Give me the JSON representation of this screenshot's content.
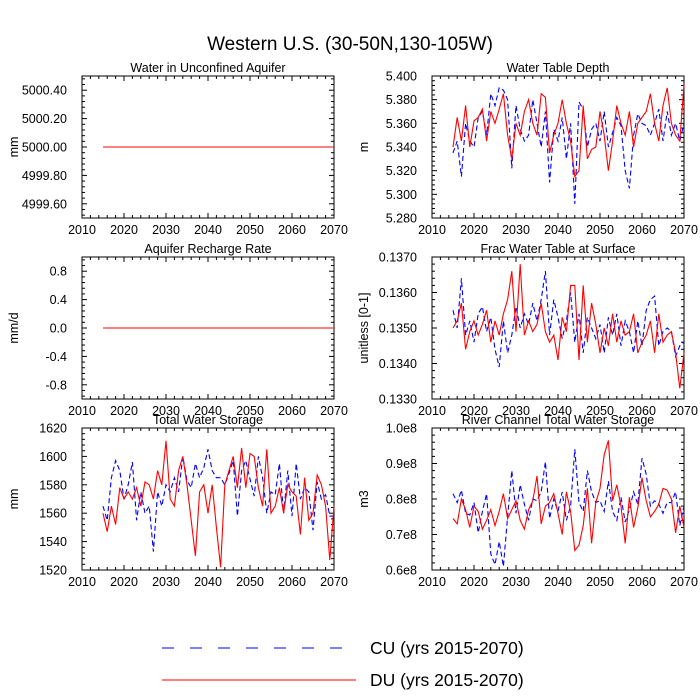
{
  "figure": {
    "title": "Western U.S. (30-50N,130-105W)",
    "legend": [
      {
        "name": "CU (yrs 2015-2070)",
        "color": "#0000ff",
        "dash": true
      },
      {
        "name": "DU (yrs 2015-2070)",
        "color": "#ff0000",
        "dash": false
      }
    ]
  },
  "chart_data": [
    {
      "type": "line",
      "title": "Water in Unconfined Aquifer",
      "ylabel": "mm",
      "xlim": [
        2010,
        2070
      ],
      "ylim": [
        4999.5,
        5000.5
      ],
      "xticks": [
        "2010",
        "2020",
        "2030",
        "2040",
        "2050",
        "2060",
        "2070"
      ],
      "yticks": [
        {
          "v": 4999.6,
          "t": "4999.60"
        },
        {
          "v": 4999.8,
          "t": "4999.80"
        },
        {
          "v": 5000.0,
          "t": "5000.00"
        },
        {
          "v": 5000.2,
          "t": "5000.20"
        },
        {
          "v": 5000.4,
          "t": "5000.40"
        }
      ],
      "x_start": 2015,
      "series": [
        {
          "name": "CU (yrs 2015-2070)",
          "color": "#0000ff",
          "values": [
            5000,
            5000,
            5000,
            5000,
            5000,
            5000,
            5000,
            5000,
            5000,
            5000,
            5000,
            5000,
            5000,
            5000,
            5000,
            5000,
            5000,
            5000,
            5000,
            5000,
            5000,
            5000,
            5000,
            5000,
            5000,
            5000,
            5000,
            5000,
            5000,
            5000,
            5000,
            5000,
            5000,
            5000,
            5000,
            5000,
            5000,
            5000,
            5000,
            5000,
            5000,
            5000,
            5000,
            5000,
            5000,
            5000,
            5000,
            5000,
            5000,
            5000,
            5000,
            5000,
            5000,
            5000,
            5000,
            5000
          ]
        },
        {
          "name": "DU (yrs 2015-2070)",
          "color": "#ff0000",
          "values": [
            5000,
            5000,
            5000,
            5000,
            5000,
            5000,
            5000,
            5000,
            5000,
            5000,
            5000,
            5000,
            5000,
            5000,
            5000,
            5000,
            5000,
            5000,
            5000,
            5000,
            5000,
            5000,
            5000,
            5000,
            5000,
            5000,
            5000,
            5000,
            5000,
            5000,
            5000,
            5000,
            5000,
            5000,
            5000,
            5000,
            5000,
            5000,
            5000,
            5000,
            5000,
            5000,
            5000,
            5000,
            5000,
            5000,
            5000,
            5000,
            5000,
            5000,
            5000,
            5000,
            5000,
            5000,
            5000,
            5000
          ]
        }
      ]
    },
    {
      "type": "line",
      "title": "Water Table Depth",
      "ylabel": "m",
      "xlim": [
        2010,
        2070
      ],
      "ylim": [
        5.28,
        5.4
      ],
      "xticks": [
        "2010",
        "2020",
        "2030",
        "2040",
        "2050",
        "2060",
        "2070"
      ],
      "yticks": [
        {
          "v": 5.28,
          "t": "5.280"
        },
        {
          "v": 5.3,
          "t": "5.300"
        },
        {
          "v": 5.32,
          "t": "5.320"
        },
        {
          "v": 5.34,
          "t": "5.340"
        },
        {
          "v": 5.36,
          "t": "5.360"
        },
        {
          "v": 5.38,
          "t": "5.380"
        },
        {
          "v": 5.4,
          "t": "5.400"
        }
      ],
      "x_start": 2015,
      "series": [
        {
          "name": "CU (yrs 2015-2070)",
          "color": "#0000ff",
          "values": [
            5.335,
            5.345,
            5.315,
            5.36,
            5.345,
            5.34,
            5.365,
            5.37,
            5.35,
            5.385,
            5.375,
            5.39,
            5.388,
            5.38,
            5.322,
            5.375,
            5.355,
            5.345,
            5.35,
            5.38,
            5.36,
            5.34,
            5.37,
            5.31,
            5.355,
            5.345,
            5.365,
            5.33,
            5.36,
            5.292,
            5.378,
            5.372,
            5.34,
            5.355,
            5.36,
            5.345,
            5.37,
            5.34,
            5.352,
            5.365,
            5.358,
            5.32,
            5.305,
            5.35,
            5.368,
            5.36,
            5.358,
            5.35,
            5.36,
            5.372,
            5.345,
            5.37,
            5.35,
            5.36,
            5.345,
            5.36
          ]
        },
        {
          "name": "DU (yrs 2015-2070)",
          "color": "#ff0000",
          "values": [
            5.34,
            5.365,
            5.345,
            5.375,
            5.34,
            5.362,
            5.365,
            5.372,
            5.345,
            5.37,
            5.36,
            5.372,
            5.385,
            5.35,
            5.33,
            5.36,
            5.35,
            5.37,
            5.38,
            5.36,
            5.35,
            5.385,
            5.382,
            5.335,
            5.35,
            5.36,
            5.38,
            5.36,
            5.345,
            5.315,
            5.32,
            5.375,
            5.33,
            5.338,
            5.34,
            5.37,
            5.35,
            5.32,
            5.345,
            5.375,
            5.36,
            5.35,
            5.37,
            5.34,
            5.36,
            5.365,
            5.37,
            5.385,
            5.36,
            5.345,
            5.375,
            5.39,
            5.36,
            5.35,
            5.345,
            5.393
          ]
        }
      ]
    },
    {
      "type": "line",
      "title": "Aquifer Recharge Rate",
      "ylabel": "mm/d",
      "xlim": [
        2010,
        2070
      ],
      "ylim": [
        -1.0,
        1.0
      ],
      "xticks": [
        "2010",
        "2020",
        "2030",
        "2040",
        "2050",
        "2060",
        "2070"
      ],
      "yticks": [
        {
          "v": -0.8,
          "t": "-0.8"
        },
        {
          "v": -0.4,
          "t": "-0.4"
        },
        {
          "v": 0.0,
          "t": "0.0"
        },
        {
          "v": 0.4,
          "t": "0.4"
        },
        {
          "v": 0.8,
          "t": "0.8"
        }
      ],
      "x_start": 2015,
      "series": [
        {
          "name": "CU (yrs 2015-2070)",
          "color": "#0000ff",
          "values": [
            0,
            0,
            0,
            0,
            0,
            0,
            0,
            0,
            0,
            0,
            0,
            0,
            0,
            0,
            0,
            0,
            0,
            0,
            0,
            0,
            0,
            0,
            0,
            0,
            0,
            0,
            0,
            0,
            0,
            0,
            0,
            0,
            0,
            0,
            0,
            0,
            0,
            0,
            0,
            0,
            0,
            0,
            0,
            0,
            0,
            0,
            0,
            0,
            0,
            0,
            0,
            0,
            0,
            0,
            0,
            0
          ]
        },
        {
          "name": "DU (yrs 2015-2070)",
          "color": "#ff0000",
          "values": [
            0,
            0,
            0,
            0,
            0,
            0,
            0,
            0,
            0,
            0,
            0,
            0,
            0,
            0,
            0,
            0,
            0,
            0,
            0,
            0,
            0,
            0,
            0,
            0,
            0,
            0,
            0,
            0,
            0,
            0,
            0,
            0,
            0,
            0,
            0,
            0,
            0,
            0,
            0,
            0,
            0,
            0,
            0,
            0,
            0,
            0,
            0,
            0,
            0,
            0,
            0,
            0,
            0,
            0,
            0,
            0
          ]
        }
      ]
    },
    {
      "type": "line",
      "title": "Frac Water Table at Surface",
      "ylabel": "unitless [0-1]",
      "xlim": [
        2010,
        2070
      ],
      "ylim": [
        0.133,
        0.137
      ],
      "xticks": [
        "2010",
        "2020",
        "2030",
        "2040",
        "2050",
        "2060",
        "2070"
      ],
      "yticks": [
        {
          "v": 0.133,
          "t": "0.1330"
        },
        {
          "v": 0.134,
          "t": "0.1340"
        },
        {
          "v": 0.135,
          "t": "0.1350"
        },
        {
          "v": 0.136,
          "t": "0.1360"
        },
        {
          "v": 0.137,
          "t": "0.1370"
        }
      ],
      "x_start": 2015,
      "series": [
        {
          "name": "CU (yrs 2015-2070)",
          "color": "#0000ff",
          "values": [
            0.1355,
            0.135,
            0.1364,
            0.1348,
            0.1352,
            0.1346,
            0.1354,
            0.1356,
            0.1349,
            0.1353,
            0.1344,
            0.1339,
            0.1352,
            0.1343,
            0.1348,
            0.1356,
            0.135,
            0.1354,
            0.1351,
            0.1357,
            0.1352,
            0.1358,
            0.1366,
            0.1348,
            0.1358,
            0.1353,
            0.1347,
            0.1352,
            0.136,
            0.1346,
            0.1354,
            0.1343,
            0.1353,
            0.135,
            0.1347,
            0.1351,
            0.1343,
            0.1353,
            0.1348,
            0.1354,
            0.1345,
            0.1352,
            0.1349,
            0.1343,
            0.1352,
            0.1345,
            0.1355,
            0.1358,
            0.1359,
            0.1345,
            0.1349,
            0.135,
            0.1349,
            0.1342,
            0.1345,
            0.1346
          ]
        },
        {
          "name": "DU (yrs 2015-2070)",
          "color": "#ff0000",
          "values": [
            0.135,
            0.1352,
            0.1357,
            0.1344,
            0.1349,
            0.1352,
            0.1348,
            0.1351,
            0.1355,
            0.1346,
            0.1352,
            0.1348,
            0.1354,
            0.1358,
            0.1366,
            0.1349,
            0.1368,
            0.1348,
            0.1352,
            0.1349,
            0.1351,
            0.1357,
            0.1349,
            0.1346,
            0.1348,
            0.1341,
            0.1353,
            0.1349,
            0.1362,
            0.1362,
            0.1341,
            0.1362,
            0.1346,
            0.1357,
            0.1351,
            0.1343,
            0.135,
            0.1345,
            0.1354,
            0.1346,
            0.1352,
            0.1348,
            0.1349,
            0.1354,
            0.1343,
            0.1346,
            0.1348,
            0.1352,
            0.1343,
            0.1354,
            0.1346,
            0.1348,
            0.1349,
            0.1343,
            0.1333,
            0.1343
          ]
        }
      ]
    },
    {
      "type": "line",
      "title": "Total Water Storage",
      "ylabel": "mm",
      "xlim": [
        2010,
        2070
      ],
      "ylim": [
        1520,
        1620
      ],
      "xticks": [
        "2010",
        "2020",
        "2030",
        "2040",
        "2050",
        "2060",
        "2070"
      ],
      "yticks": [
        {
          "v": 1520,
          "t": "1520"
        },
        {
          "v": 1540,
          "t": "1540"
        },
        {
          "v": 1560,
          "t": "1560"
        },
        {
          "v": 1580,
          "t": "1580"
        },
        {
          "v": 1600,
          "t": "1600"
        },
        {
          "v": 1620,
          "t": "1620"
        }
      ],
      "x_start": 2015,
      "series": [
        {
          "name": "CU (yrs 2015-2070)",
          "color": "#0000ff",
          "values": [
            1565,
            1555,
            1585,
            1597,
            1590,
            1570,
            1580,
            1596,
            1555,
            1575,
            1560,
            1565,
            1533,
            1575,
            1565,
            1580,
            1575,
            1585,
            1575,
            1600,
            1583,
            1578,
            1595,
            1585,
            1592,
            1605,
            1590,
            1585,
            1585,
            1580,
            1588,
            1597,
            1558,
            1590,
            1597,
            1584,
            1572,
            1600,
            1585,
            1560,
            1575,
            1573,
            1595,
            1560,
            1590,
            1558,
            1595,
            1570,
            1578,
            1575,
            1548,
            1582,
            1570,
            1573,
            1558,
            1558
          ]
        },
        {
          "name": "DU (yrs 2015-2070)",
          "color": "#ff0000",
          "values": [
            1560,
            1547,
            1565,
            1552,
            1578,
            1570,
            1575,
            1570,
            1578,
            1565,
            1582,
            1580,
            1570,
            1590,
            1580,
            1611,
            1570,
            1565,
            1590,
            1600,
            1580,
            1555,
            1530,
            1575,
            1580,
            1560,
            1580,
            1550,
            1522,
            1580,
            1590,
            1600,
            1578,
            1606,
            1578,
            1602,
            1600,
            1578,
            1565,
            1605,
            1560,
            1565,
            1578,
            1560,
            1580,
            1575,
            1572,
            1545,
            1585,
            1555,
            1560,
            1587,
            1580,
            1565,
            1527,
            1565
          ]
        }
      ]
    },
    {
      "type": "line",
      "title": "River Channel Total Water Storage",
      "ylabel": "m3",
      "xlim": [
        2010,
        2070
      ],
      "ylim": [
        60000000,
        100000000
      ],
      "xticks": [
        "2010",
        "2020",
        "2030",
        "2040",
        "2050",
        "2060",
        "2070"
      ],
      "yticks": [
        {
          "v": 60000000,
          "t": "0.6e8"
        },
        {
          "v": 70000000,
          "t": "0.7e8"
        },
        {
          "v": 80000000,
          "t": "0.8e8"
        },
        {
          "v": 90000000,
          "t": "0.9e8"
        },
        {
          "v": 100000000,
          "t": "1.0e8"
        }
      ],
      "x_start": 2015,
      "series": [
        {
          "name": "CU (yrs 2015-2070)",
          "color": "#0000ff",
          "values": [
            81500000,
            79000000,
            82500000,
            76000000,
            75500000,
            79000000,
            70500000,
            76500000,
            81500000,
            64500000,
            61500000,
            68000000,
            61000000,
            75000000,
            88000000,
            76000000,
            84000000,
            78500000,
            74000000,
            80000000,
            79500000,
            82000000,
            90500000,
            74500000,
            80000000,
            76500000,
            82000000,
            74000000,
            78000000,
            94000000,
            79000000,
            76500000,
            88000000,
            82000000,
            79000000,
            79500000,
            76500000,
            85000000,
            76500000,
            74000000,
            80500000,
            73500000,
            77000000,
            82000000,
            78500000,
            91500000,
            87000000,
            78000000,
            79500000,
            78500000,
            76000000,
            79000000,
            79000000,
            82000000,
            72500000,
            78000000
          ]
        },
        {
          "name": "DU (yrs 2015-2070)",
          "color": "#ff0000",
          "values": [
            74500000,
            73000000,
            80000000,
            77000000,
            72000000,
            78000000,
            76500000,
            71500000,
            74000000,
            77000000,
            72500000,
            76500000,
            81500000,
            74500000,
            77000000,
            79500000,
            74000000,
            71500000,
            77000000,
            79500000,
            86500000,
            73000000,
            78000000,
            79000000,
            81500000,
            76000000,
            70000000,
            82000000,
            76500000,
            65500000,
            67000000,
            72500000,
            83000000,
            67500000,
            79000000,
            83000000,
            92500000,
            96500000,
            79500000,
            84000000,
            78000000,
            67500000,
            80500000,
            72000000,
            77500000,
            86000000,
            79500000,
            75000000,
            76500000,
            78500000,
            83000000,
            82500000,
            80000000,
            70500000,
            78000000,
            72000000
          ]
        }
      ]
    }
  ]
}
